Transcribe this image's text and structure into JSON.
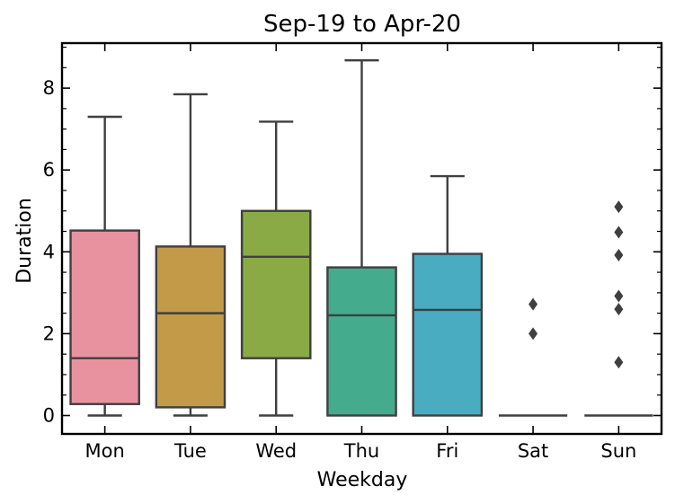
{
  "chart_data": {
    "type": "box",
    "title": "Sep-19 to Apr-20",
    "xlabel": "Weekday",
    "ylabel": "Duration",
    "ylim": [
      -0.45,
      9.1
    ],
    "yticks": [
      0,
      2,
      4,
      6,
      8
    ],
    "yticks_minor_step": 0.5,
    "categories": [
      "Mon",
      "Tue",
      "Wed",
      "Thu",
      "Fri",
      "Sat",
      "Sun"
    ],
    "boxes": [
      {
        "label": "Mon",
        "color": "#e8929f",
        "whisker_low": 0.0,
        "q1": 0.28,
        "median": 1.4,
        "q3": 4.52,
        "whisker_high": 7.3,
        "outliers": []
      },
      {
        "label": "Tue",
        "color": "#c39a48",
        "whisker_low": 0.0,
        "q1": 0.2,
        "median": 2.5,
        "q3": 4.13,
        "whisker_high": 7.85,
        "outliers": []
      },
      {
        "label": "Wed",
        "color": "#89aa45",
        "whisker_low": 0.0,
        "q1": 1.4,
        "median": 3.88,
        "q3": 5.0,
        "whisker_high": 7.18,
        "outliers": []
      },
      {
        "label": "Thu",
        "color": "#44ab8c",
        "whisker_low": 0.0,
        "q1": 0.0,
        "median": 2.45,
        "q3": 3.62,
        "whisker_high": 8.68,
        "outliers": []
      },
      {
        "label": "Fri",
        "color": "#49acc0",
        "whisker_low": 0.0,
        "q1": 0.0,
        "median": 2.58,
        "q3": 3.95,
        "whisker_high": 5.85,
        "outliers": []
      },
      {
        "label": "Sat",
        "color": "#a3a4ec",
        "whisker_low": 0.0,
        "q1": 0.0,
        "median": 0.0,
        "q3": 0.0,
        "whisker_high": 0.0,
        "outliers": [
          2.0,
          2.72
        ]
      },
      {
        "label": "Sun",
        "color": "#e58fcd",
        "whisker_low": 0.0,
        "q1": 0.0,
        "median": 0.0,
        "q3": 0.0,
        "whisker_high": 0.0,
        "outliers": [
          1.3,
          2.6,
          2.92,
          3.92,
          4.48,
          5.1
        ]
      }
    ],
    "line_color": "#3f3f3f",
    "grid": false,
    "legend": "none"
  }
}
